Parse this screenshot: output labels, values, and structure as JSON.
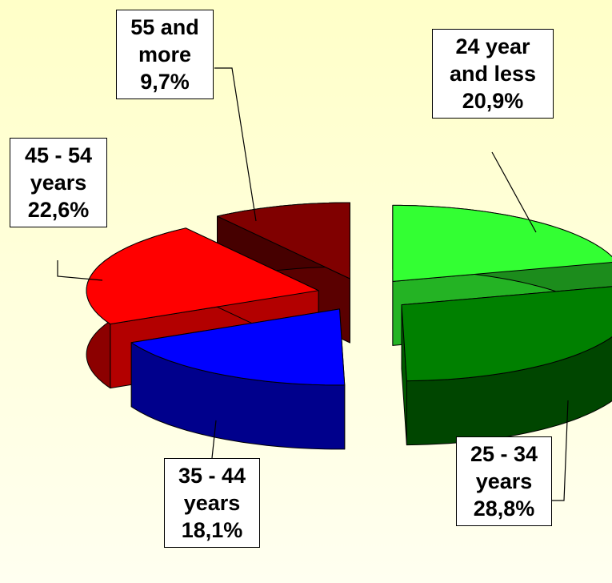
{
  "chart_data": {
    "type": "pie",
    "categories": [
      "24 year and less",
      "25 - 34 years",
      "35 - 44 years",
      "45 - 54 years",
      "55 and more"
    ],
    "values": [
      20.9,
      28.8,
      18.1,
      22.6,
      9.7
    ],
    "value_labels": [
      "20,9%",
      "28,8%",
      "18,1%",
      "22,6%",
      "9,7%"
    ],
    "colors": [
      "#33ff33",
      "#008000",
      "#0000ff",
      "#ff0000",
      "#800000"
    ]
  }
}
